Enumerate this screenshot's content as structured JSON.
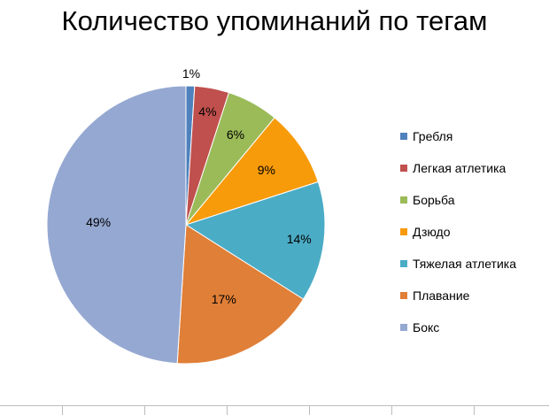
{
  "chart_data": {
    "type": "pie",
    "title": "Количество упоминаний по тегам",
    "legend_position": "right",
    "slices": [
      {
        "name": "Гребля",
        "value": 1,
        "label": "1%",
        "color": "#4F81BD"
      },
      {
        "name": "Легкая атлетика",
        "value": 4,
        "label": "4%",
        "color": "#C0504D"
      },
      {
        "name": "Борьба",
        "value": 6,
        "label": "6%",
        "color": "#9BBB59"
      },
      {
        "name": "Дзюдо",
        "value": 9,
        "label": "9%",
        "color": "#F79B0A"
      },
      {
        "name": "Тяжелая атлетика",
        "value": 14,
        "label": "14%",
        "color": "#4BACC6"
      },
      {
        "name": "Плавание",
        "value": 17,
        "label": "17%",
        "color": "#E07F37"
      },
      {
        "name": "Бокс",
        "value": 49,
        "label": "49%",
        "color": "#95A8D2"
      }
    ]
  }
}
